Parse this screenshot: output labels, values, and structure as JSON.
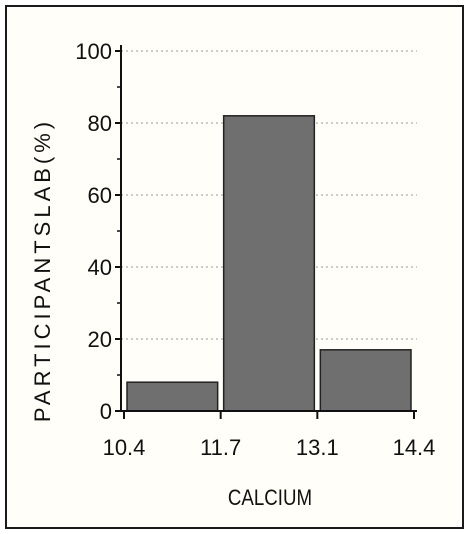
{
  "chart_data": {
    "type": "bar",
    "title": "",
    "xlabel": "CALCIUM",
    "ylabel": "PARTICIPANTSLAB(%)",
    "ylim": [
      0,
      100
    ],
    "x_ticks": [
      "10.4",
      "11.7",
      "13.1",
      "14.4"
    ],
    "y_ticks": [
      "0",
      "20",
      "40",
      "60",
      "80",
      "100"
    ],
    "bins": [
      {
        "from": "10.4",
        "to": "11.7",
        "value": 8
      },
      {
        "from": "11.7",
        "to": "13.1",
        "value": 82
      },
      {
        "from": "13.1",
        "to": "14.4",
        "value": 17
      }
    ],
    "grid": "horizontal dotted",
    "colors": {
      "bar": "#6f6f6f",
      "bar_edge": "#222222",
      "axis": "#111111",
      "grid": "#9a9a9a"
    }
  }
}
